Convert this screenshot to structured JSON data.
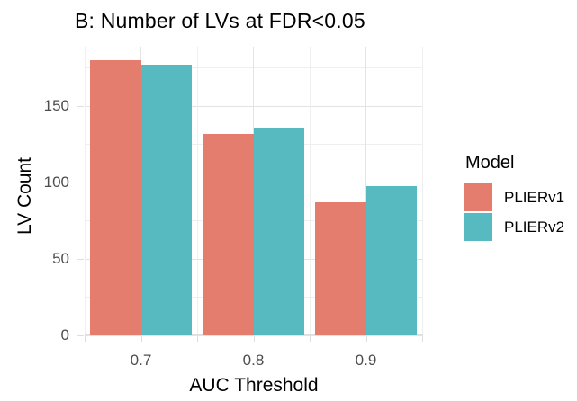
{
  "title": "B: Number of LVs at FDR<0.05",
  "axes": {
    "x_title": "AUC Threshold",
    "y_title": "LV Count",
    "x_tick_labels": [
      "0.7",
      "0.8",
      "0.9"
    ],
    "y_tick_labels": [
      "0",
      "50",
      "100",
      "150"
    ]
  },
  "legend": {
    "title": "Model",
    "items": [
      {
        "label": "PLIERv1",
        "color": "#E57D6E"
      },
      {
        "label": "PLIERv2",
        "color": "#58BAC1"
      }
    ]
  },
  "chart_data": {
    "type": "bar",
    "title": "B: Number of LVs at FDR<0.05",
    "xlabel": "AUC Threshold",
    "ylabel": "LV Count",
    "categories": [
      "0.7",
      "0.8",
      "0.9"
    ],
    "series": [
      {
        "name": "PLIERv1",
        "color": "#E57D6E",
        "values": [
          180,
          132,
          87
        ]
      },
      {
        "name": "PLIERv2",
        "color": "#58BAC1",
        "values": [
          177,
          136,
          98
        ]
      }
    ],
    "ylim": [
      0,
      189
    ],
    "y_major_ticks": [
      0,
      50,
      100,
      150
    ],
    "y_minor_ticks": [
      25,
      75,
      125,
      175
    ],
    "grid": true,
    "legend_position": "right",
    "legend_title": "Model",
    "colors": {
      "grid_major": "#e3e3e3",
      "grid_minor": "#efefef",
      "axis_tick": "#dedede",
      "tick_label_text": "#4d4d4d",
      "title_text": "#000000"
    }
  }
}
